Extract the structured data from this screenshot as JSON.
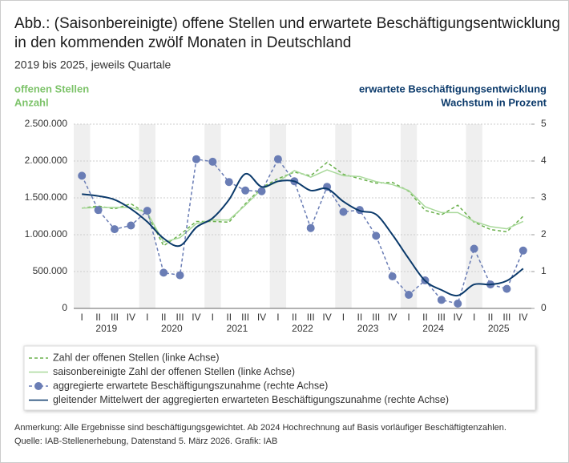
{
  "chart_data": {
    "type": "line",
    "title": "Abb.: (Saisonbereinigte) offene Stellen und erwartete Beschäftigungsentwicklung",
    "title_line2": "in den kommenden zwölf Monaten in Deutschland",
    "subtitle": "2019 bis 2025, jeweils Quartale",
    "y_label": "offenen Stellen",
    "y_unit": "Anzahl",
    "y2_label": "erwartete Beschäftigungsentwicklung",
    "y2_unit": "Wachstum in Prozent",
    "categories": [
      "I",
      "II",
      "III",
      "IV",
      "I",
      "II",
      "III",
      "IV",
      "I",
      "II",
      "III",
      "IV",
      "I",
      "II",
      "III",
      "IV",
      "I",
      "II",
      "III",
      "IV",
      "I",
      "II",
      "III",
      "IV",
      "I",
      "II",
      "III",
      "IV"
    ],
    "years": [
      "2019",
      "2020",
      "2021",
      "2022",
      "2023",
      "2024",
      "2025"
    ],
    "ylim": [
      0,
      2500000
    ],
    "yticks": [
      0,
      {
        "value": 500000,
        "label": "500.000"
      },
      {
        "value": 1000000,
        "label": "1.000.000"
      },
      {
        "value": 1500000,
        "label": "1.500.000"
      },
      {
        "value": 2000000,
        "label": "2.000.000"
      },
      {
        "value": 2500000,
        "label": "2.500.000"
      }
    ],
    "y2lim": [
      0,
      5
    ],
    "y2ticks": [
      0,
      1,
      2,
      3,
      4,
      5
    ],
    "series": [
      {
        "name": "Zahl der offenen Stellen (linke Achse)",
        "color": "#6ab04c",
        "dashed": true,
        "values": [
          1360000,
          1390000,
          1350000,
          1420000,
          1280000,
          850000,
          1000000,
          1180000,
          1180000,
          1170000,
          1420000,
          1640000,
          1760000,
          1850000,
          1800000,
          1980000,
          1820000,
          1760000,
          1700000,
          1710000,
          1590000,
          1330000,
          1270000,
          1400000,
          1170000,
          1070000,
          1040000,
          1250000
        ]
      },
      {
        "name": "saisonbereinigte Zahl der offenen Stellen (linke Achse)",
        "color": "#a9d99b",
        "values": [
          1360000,
          1370000,
          1370000,
          1370000,
          1300000,
          900000,
          960000,
          1150000,
          1200000,
          1200000,
          1400000,
          1620000,
          1720000,
          1870000,
          1780000,
          1880000,
          1800000,
          1790000,
          1720000,
          1680000,
          1600000,
          1380000,
          1300000,
          1300000,
          1180000,
          1110000,
          1080000,
          1180000
        ]
      },
      {
        "name": "aggregierte erwartete Beschäftigungszunahme (rechte Achse)",
        "color": "#6a7db5",
        "axis": "y2",
        "dashed": true,
        "markers": true,
        "values": [
          3.6,
          2.67,
          2.15,
          2.25,
          2.65,
          0.97,
          0.9,
          4.05,
          3.98,
          3.43,
          3.2,
          3.18,
          4.05,
          3.45,
          2.18,
          3.3,
          2.62,
          2.67,
          1.97,
          0.87,
          0.37,
          0.76,
          0.23,
          0.13,
          1.62,
          0.65,
          0.53,
          1.57
        ]
      },
      {
        "name": "gleitender Mittelwert der aggregierten erwarteten Beschäftigungszunahme (rechte Achse)",
        "color": "#0b3a6b",
        "axis": "y2",
        "smooth": true,
        "values": [
          3.1,
          3.05,
          2.95,
          2.7,
          2.35,
          1.9,
          1.7,
          2.2,
          2.45,
          2.95,
          3.65,
          3.3,
          3.45,
          3.45,
          3.2,
          3.25,
          2.9,
          2.65,
          2.55,
          2.0,
          1.35,
          0.75,
          0.5,
          0.35,
          0.65,
          0.65,
          0.75,
          1.08
        ]
      }
    ],
    "note": "Anmerkung: Alle Ergebnisse sind beschäftigungsgewichtet. Ab 2024 Hochrechnung auf Basis vorläufiger Beschäftigtenzahlen.",
    "source": "Quelle: IAB-Stellenerhebung, Datenstand 5. März 2026. Grafik: IAB"
  }
}
